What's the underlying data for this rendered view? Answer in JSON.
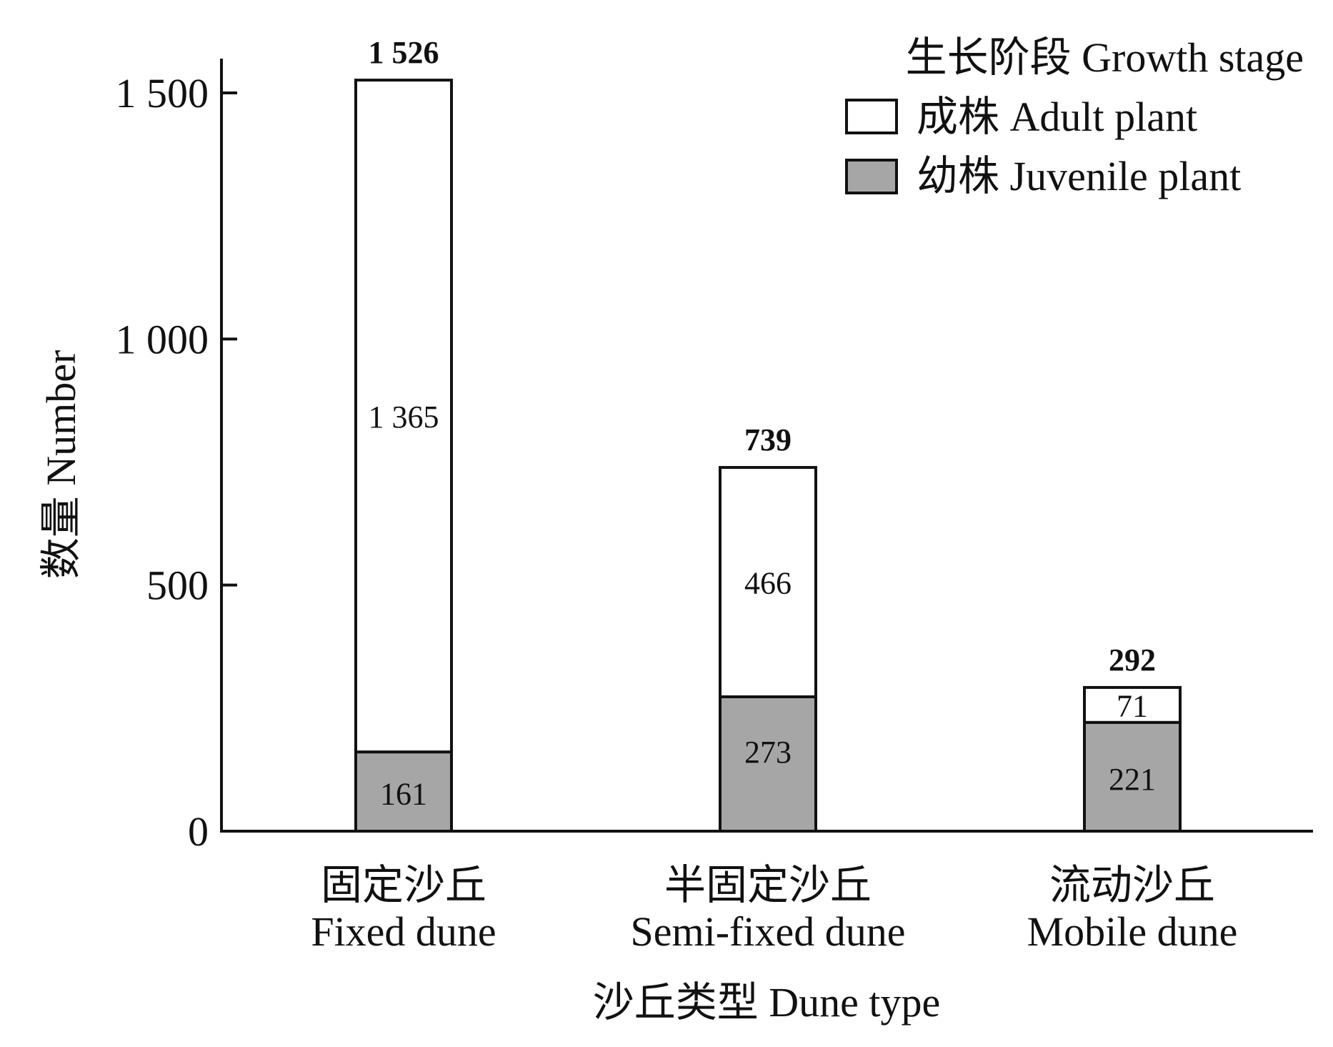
{
  "chart_data": {
    "type": "bar",
    "stacked": true,
    "title": "",
    "xlabel": "沙丘类型 Dune type",
    "ylabel": "数量 Number",
    "ylim": [
      0,
      1600
    ],
    "yticks": [
      0,
      500,
      1000,
      1500
    ],
    "ytick_labels": [
      "0",
      "500",
      "1 000",
      "1 500"
    ],
    "grid": false,
    "legend_position": "top-right",
    "legend_title": "生长阶段 Growth stage",
    "categories": [
      {
        "zh": "固定沙丘",
        "en": "Fixed dune"
      },
      {
        "zh": "半固定沙丘",
        "en": "Semi-fixed dune"
      },
      {
        "zh": "流动沙丘",
        "en": "Mobile dune"
      }
    ],
    "series": [
      {
        "name": "幼株 Juvenile plant",
        "color": "#a6a6a6",
        "values": [
          161,
          273,
          221
        ],
        "labels": [
          "161",
          "273",
          "221"
        ]
      },
      {
        "name": "成株 Adult plant",
        "color": "#ffffff",
        "values": [
          1365,
          466,
          71
        ],
        "labels": [
          "1 365",
          "466",
          "71"
        ]
      }
    ],
    "totals": [
      1526,
      739,
      292
    ],
    "total_labels": [
      "1 526",
      "739",
      "292"
    ]
  }
}
